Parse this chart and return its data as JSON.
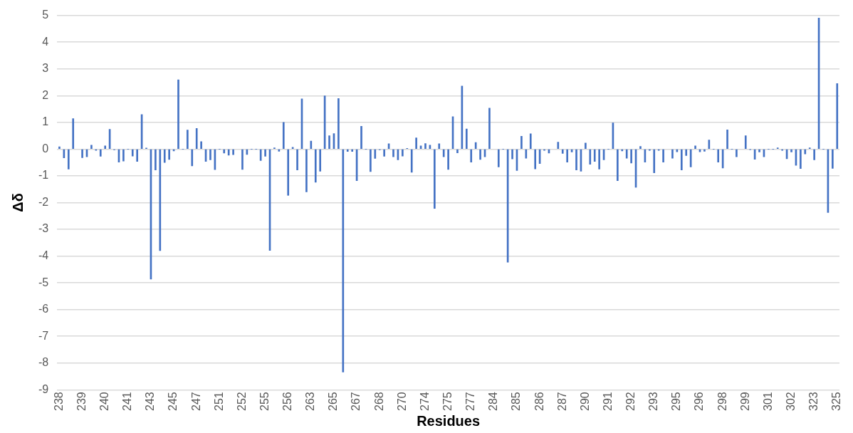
{
  "chart_data": {
    "type": "bar",
    "xlabel": "Residues",
    "ylabel": "Δδ",
    "color": "#4472c4",
    "grid": "y",
    "ylim": [
      -9,
      5
    ],
    "yticks": [
      -9,
      -8,
      -7,
      -6,
      -5,
      -4,
      -3,
      -2,
      -1,
      0,
      1,
      2,
      3,
      4,
      5
    ],
    "categories": [
      "238",
      null,
      null,
      null,
      null,
      "239",
      null,
      null,
      null,
      null,
      "240",
      null,
      null,
      null,
      null,
      "241",
      null,
      null,
      null,
      null,
      "243",
      null,
      null,
      null,
      null,
      "245",
      null,
      null,
      null,
      null,
      "247",
      null,
      null,
      null,
      null,
      "251",
      null,
      null,
      null,
      null,
      "252",
      null,
      null,
      null,
      null,
      "255",
      null,
      null,
      null,
      null,
      "256",
      null,
      null,
      null,
      null,
      "263",
      null,
      null,
      null,
      null,
      "265",
      null,
      null,
      null,
      null,
      "267",
      null,
      null,
      null,
      null,
      "268",
      null,
      null,
      null,
      null,
      "270",
      null,
      null,
      null,
      null,
      "274",
      null,
      null,
      null,
      null,
      "275",
      null,
      null,
      null,
      null,
      "277",
      null,
      null,
      null,
      null,
      "284",
      null,
      null,
      null,
      null,
      "285",
      null,
      null,
      null,
      null,
      "286",
      null,
      null,
      null,
      null,
      "287",
      null,
      null,
      null,
      null,
      "290",
      null,
      null,
      null,
      null,
      "291",
      null,
      null,
      null,
      null,
      "292",
      null,
      null,
      null,
      null,
      "293",
      null,
      null,
      null,
      null,
      "295",
      null,
      null,
      null,
      null,
      "296",
      null,
      null,
      null,
      null,
      "298",
      null,
      null,
      null,
      null,
      "299",
      null,
      null,
      null,
      null,
      "301",
      null,
      null,
      null,
      null,
      "302",
      null,
      null,
      null,
      null,
      "323",
      null,
      null,
      null,
      null,
      "325"
    ],
    "values": [
      0.09,
      -0.33,
      -0.75,
      1.14,
      null,
      -0.32,
      -0.29,
      0.15,
      -0.05,
      -0.27,
      0.12,
      0.74,
      -0.03,
      -0.49,
      -0.45,
      0,
      -0.26,
      -0.46,
      1.29,
      0.04,
      -4.86,
      -0.78,
      -3.8,
      -0.5,
      -0.39,
      -0.07,
      2.59,
      0,
      0.71,
      -0.63,
      0.77,
      0.28,
      -0.46,
      -0.4,
      -0.77,
      0,
      -0.15,
      -0.23,
      -0.21,
      null,
      -0.76,
      -0.2,
      0,
      0,
      -0.43,
      -0.27,
      -3.79,
      0.05,
      -0.08,
      1.0,
      -1.73,
      0.07,
      -0.78,
      1.88,
      -1.6,
      0.3,
      -1.24,
      -0.83,
      1.99,
      0.5,
      0.58,
      1.89,
      -8.34,
      -0.09,
      -0.09,
      -1.18,
      0.85,
      0,
      -0.84,
      -0.35,
      -0.03,
      -0.27,
      0.2,
      -0.29,
      -0.4,
      -0.26,
      0.03,
      -0.87,
      0.42,
      0.12,
      0.21,
      0.15,
      -2.22,
      0.2,
      -0.29,
      -0.76,
      1.21,
      -0.14,
      2.36,
      0.75,
      -0.49,
      0.25,
      -0.39,
      -0.29,
      1.53,
      null,
      -0.67,
      0,
      -4.23,
      -0.37,
      -0.8,
      0.48,
      -0.34,
      0.57,
      -0.74,
      -0.54,
      -0.05,
      -0.15,
      null,
      0.26,
      -0.16,
      -0.49,
      -0.11,
      -0.78,
      -0.83,
      0.23,
      -0.57,
      -0.46,
      -0.75,
      -0.4,
      0,
      0.98,
      -1.18,
      -0.07,
      -0.34,
      -0.52,
      -1.43,
      0.1,
      -0.49,
      -0.05,
      -0.89,
      -0.05,
      -0.49,
      null,
      -0.34,
      -0.1,
      -0.78,
      -0.24,
      -0.67,
      0.12,
      -0.1,
      -0.08,
      0.34,
      0,
      -0.49,
      -0.71,
      0.72,
      0,
      -0.29,
      null,
      0.5,
      -0.01,
      -0.38,
      -0.11,
      -0.29,
      0,
      0,
      0.05,
      -0.05,
      -0.36,
      -0.11,
      -0.61,
      -0.73,
      -0.18,
      0.05,
      -0.4,
      4.9,
      0,
      -2.37,
      -0.72,
      2.45
    ]
  }
}
